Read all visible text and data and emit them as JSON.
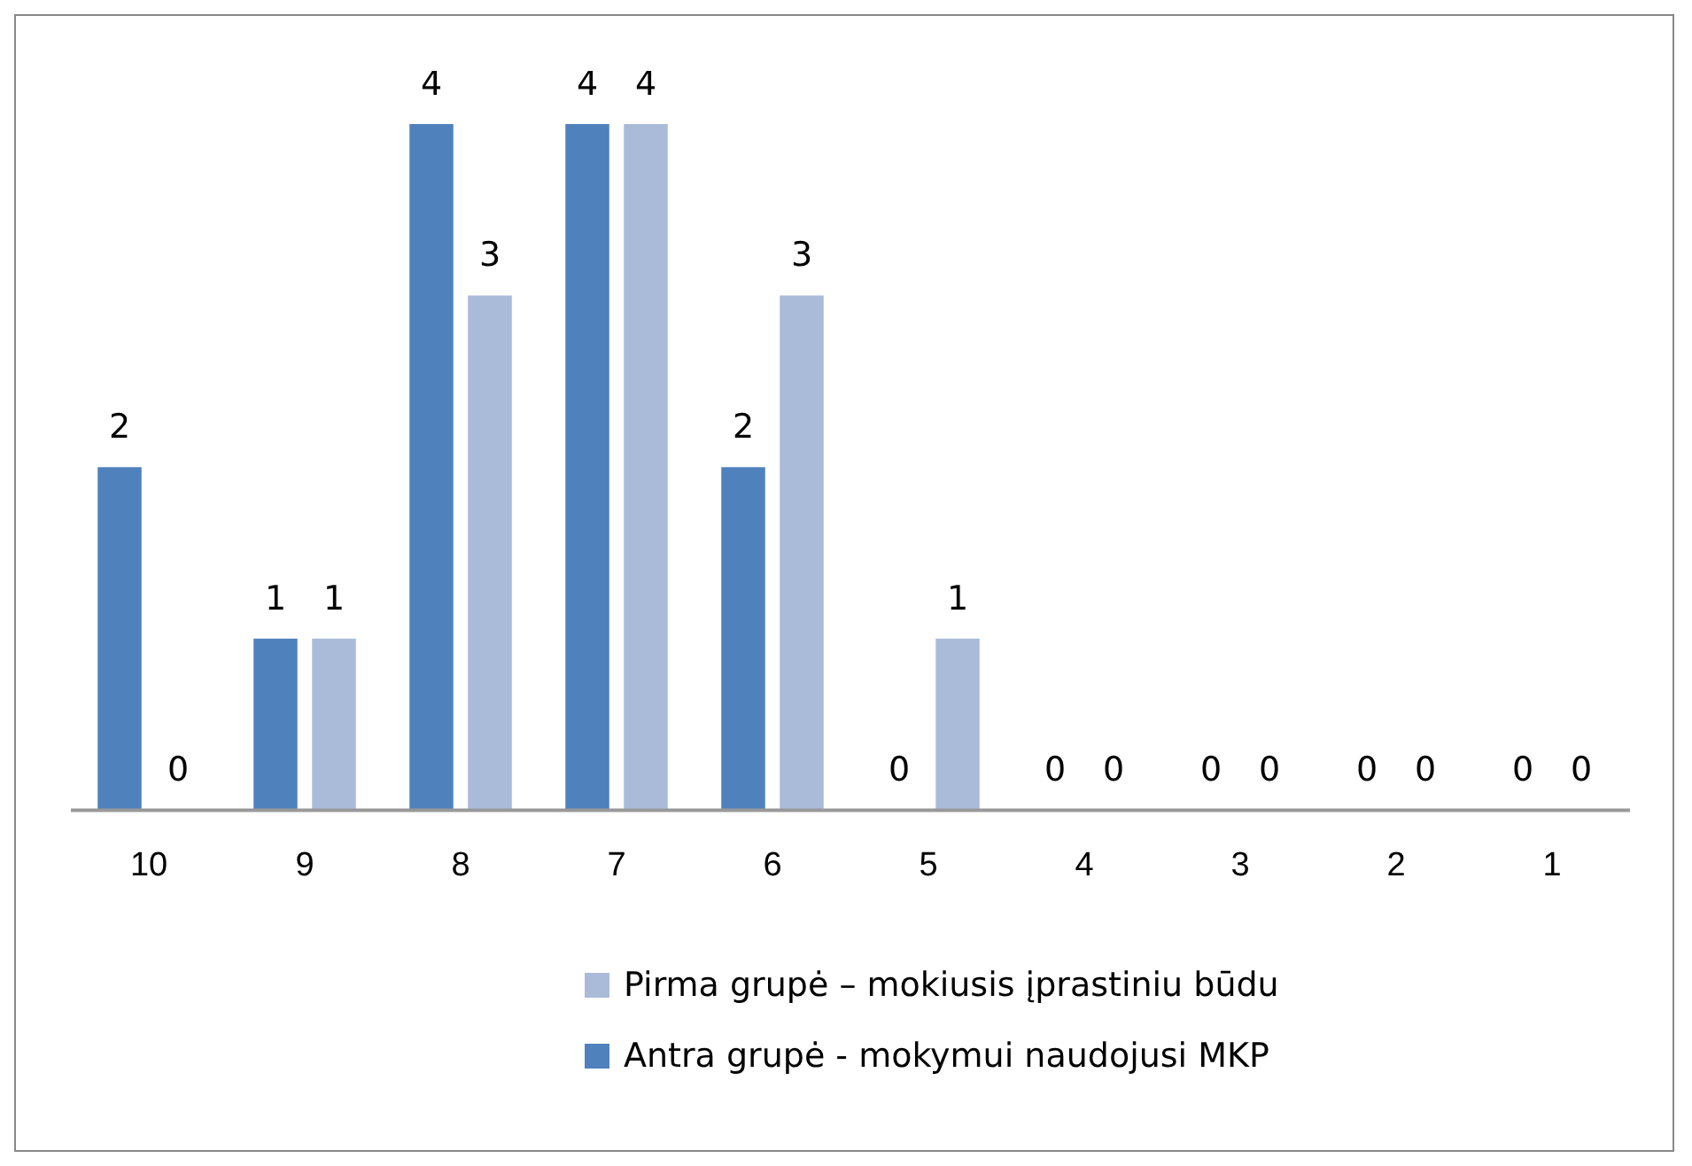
{
  "chart_data": {
    "type": "bar",
    "categories": [
      "10",
      "9",
      "8",
      "7",
      "6",
      "5",
      "4",
      "3",
      "2",
      "1"
    ],
    "series": [
      {
        "name": "Antra grupė - mokymui naudojusi MKP",
        "color": "#4f81bd",
        "values": [
          2,
          1,
          4,
          4,
          2,
          0,
          0,
          0,
          0,
          0
        ]
      },
      {
        "name": "Pirma grupė – mokiusis įprastiniu būdu",
        "color": "#aabbd9",
        "values": [
          0,
          1,
          3,
          4,
          3,
          1,
          0,
          0,
          0,
          0
        ]
      }
    ],
    "data_labels": true,
    "grid": false,
    "legend": "bottom"
  }
}
